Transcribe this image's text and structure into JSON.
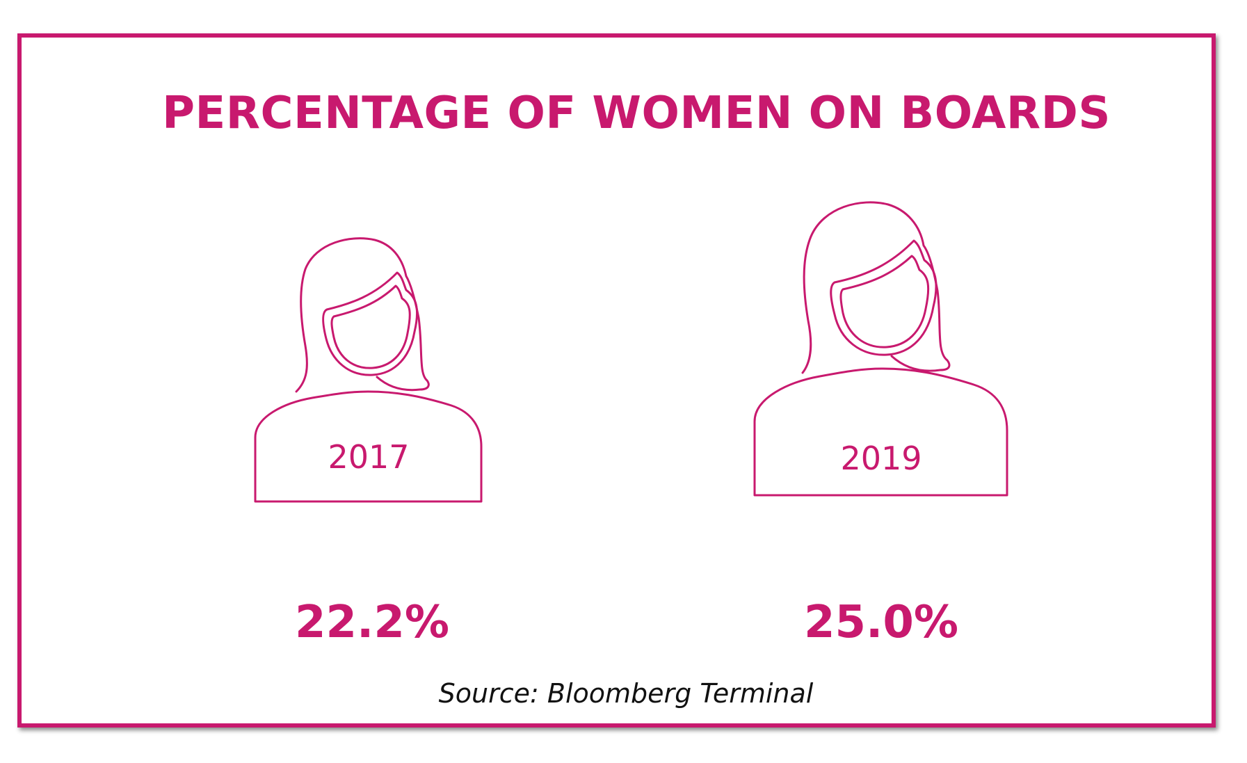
{
  "colors": {
    "accent": "#c8196e",
    "text": "#111111",
    "background": "#ffffff"
  },
  "icons": [
    "woman-silhouette-icon",
    "woman-silhouette-icon"
  ],
  "chart_data": {
    "type": "table",
    "title": "PERCENTAGE OF WOMEN ON BOARDS",
    "categories": [
      "2017",
      "2019"
    ],
    "values": [
      22.2,
      25.0
    ],
    "value_labels": [
      "22.2%",
      "25.0%"
    ],
    "unit": "%",
    "source": "Source: Bloomberg Terminal"
  }
}
